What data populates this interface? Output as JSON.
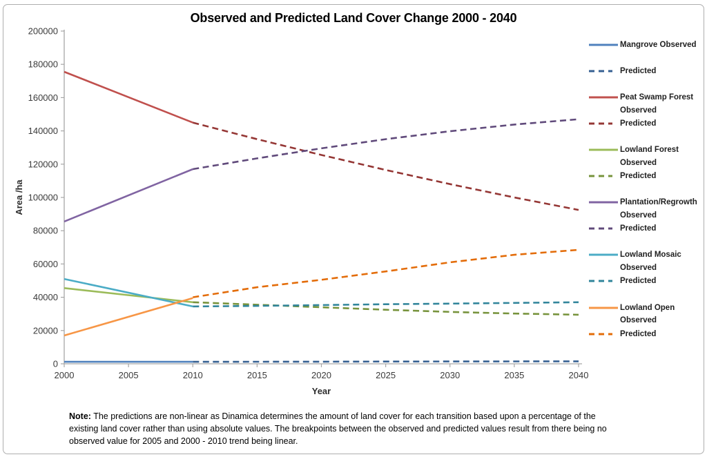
{
  "chart_data": {
    "type": "line",
    "title": "Observed and Predicted Land Cover Change 2000 - 2040",
    "xlabel": "Year",
    "ylabel": "Area /ha",
    "xlim": [
      2000,
      2040
    ],
    "ylim": [
      0,
      200000
    ],
    "xticks": [
      2000,
      2005,
      2010,
      2015,
      2020,
      2025,
      2030,
      2035,
      2040
    ],
    "yticks": [
      0,
      20000,
      40000,
      60000,
      80000,
      100000,
      120000,
      140000,
      160000,
      180000,
      200000
    ],
    "grid": false,
    "legend_position": "right",
    "series": [
      {
        "name": "Mangrove Observed",
        "color": "#4F81BD",
        "dashed": false,
        "x": [
          2000,
          2010
        ],
        "y": [
          1200,
          1200
        ]
      },
      {
        "name": "Mangrove Predicted",
        "color": "#366092",
        "dashed": true,
        "x": [
          2010,
          2015,
          2020,
          2025,
          2030,
          2035,
          2040
        ],
        "y": [
          1200,
          1250,
          1300,
          1350,
          1400,
          1450,
          1500
        ]
      },
      {
        "name": "Peat Swamp Forest Observed",
        "color": "#C0504D",
        "dashed": false,
        "x": [
          2000,
          2010
        ],
        "y": [
          175500,
          145000
        ]
      },
      {
        "name": "Peat Swamp Forest Predicted",
        "color": "#953735",
        "dashed": true,
        "x": [
          2010,
          2015,
          2020,
          2025,
          2030,
          2035,
          2040
        ],
        "y": [
          145000,
          135000,
          125500,
          116500,
          108000,
          100000,
          92500
        ]
      },
      {
        "name": "Lowland Forest Observed",
        "color": "#9BBB59",
        "dashed": false,
        "x": [
          2000,
          2010
        ],
        "y": [
          45500,
          37000
        ]
      },
      {
        "name": "Lowland Forest Predicted",
        "color": "#77933C",
        "dashed": true,
        "x": [
          2010,
          2015,
          2020,
          2025,
          2030,
          2035,
          2040
        ],
        "y": [
          37000,
          35500,
          34000,
          32500,
          31200,
          30200,
          29500
        ]
      },
      {
        "name": "Plantation/Regrowth Observed",
        "color": "#8064A2",
        "dashed": false,
        "x": [
          2000,
          2010
        ],
        "y": [
          85500,
          117000
        ]
      },
      {
        "name": "Plantation/Regrowth Predicted",
        "color": "#604A7B",
        "dashed": true,
        "x": [
          2010,
          2015,
          2020,
          2025,
          2030,
          2035,
          2040
        ],
        "y": [
          117000,
          123500,
          129500,
          135000,
          139800,
          143800,
          147000
        ]
      },
      {
        "name": "Lowland Mosaic Observed",
        "color": "#4BACC6",
        "dashed": false,
        "x": [
          2000,
          2010
        ],
        "y": [
          51000,
          34500
        ]
      },
      {
        "name": "Lowland Mosaic Predicted",
        "color": "#31859B",
        "dashed": true,
        "x": [
          2010,
          2015,
          2020,
          2025,
          2030,
          2035,
          2040
        ],
        "y": [
          34500,
          34800,
          35300,
          35800,
          36200,
          36600,
          37000
        ]
      },
      {
        "name": "Lowland Open Observed",
        "color": "#F79646",
        "dashed": false,
        "x": [
          2000,
          2010
        ],
        "y": [
          17000,
          39500
        ]
      },
      {
        "name": "Lowland Open Predicted",
        "color": "#E36C09",
        "dashed": true,
        "x": [
          2010,
          2015,
          2020,
          2025,
          2030,
          2035,
          2040
        ],
        "y": [
          40000,
          46000,
          50500,
          55500,
          61000,
          65500,
          68500
        ]
      }
    ]
  },
  "legend": {
    "items": [
      {
        "lines": [
          "Mangrove Observed"
        ],
        "color": "#4F81BD",
        "dashed": false
      },
      {
        "lines": [
          "Predicted"
        ],
        "color": "#366092",
        "dashed": true
      },
      {
        "lines": [
          "Peat Swamp Forest",
          "Observed"
        ],
        "color": "#C0504D",
        "dashed": false
      },
      {
        "lines": [
          "Predicted"
        ],
        "color": "#953735",
        "dashed": true
      },
      {
        "lines": [
          "Lowland Forest",
          "Observed"
        ],
        "color": "#9BBB59",
        "dashed": false
      },
      {
        "lines": [
          "Predicted"
        ],
        "color": "#77933C",
        "dashed": true
      },
      {
        "lines": [
          "Plantation/Regrowth",
          "Observed"
        ],
        "color": "#8064A2",
        "dashed": false
      },
      {
        "lines": [
          "Predicted"
        ],
        "color": "#604A7B",
        "dashed": true
      },
      {
        "lines": [
          "Lowland Mosaic",
          "Observed"
        ],
        "color": "#4BACC6",
        "dashed": false
      },
      {
        "lines": [
          "Predicted"
        ],
        "color": "#31859B",
        "dashed": true
      },
      {
        "lines": [
          "Lowland Open",
          "Observed"
        ],
        "color": "#F79646",
        "dashed": false
      },
      {
        "lines": [
          "Predicted"
        ],
        "color": "#E36C09",
        "dashed": true
      }
    ]
  },
  "note": {
    "label": "Note:",
    "text": "The predictions are non-linear as Dinamica determines the amount of land cover for each transition based upon a percentage of the existing land cover  rather than using absolute values. The breakpoints between the observed and predicted values result from there being no observed value for 2005 and 2000 - 2010 trend being linear."
  }
}
